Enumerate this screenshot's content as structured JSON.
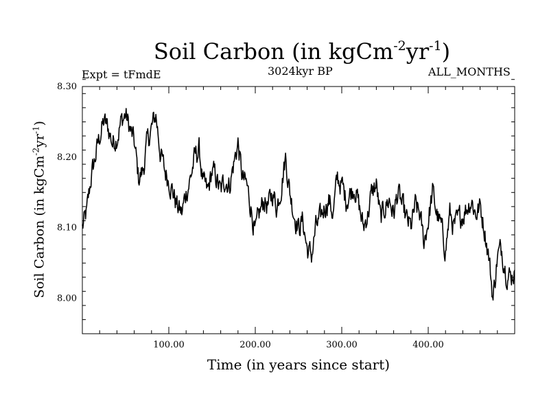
{
  "title": {
    "main": "Soil Carbon (in kgCm",
    "sup1": "-2",
    "mid": "yr",
    "sup2": "-1",
    "end": ")"
  },
  "left_note": "Expt = tFmdE",
  "center_note": "3024kyr BP",
  "right_note": "ALL_MONTHS",
  "chart_data": {
    "type": "line",
    "title": "Soil Carbon (in kgCm-2yr-1)",
    "xlabel": "Time (in years since start)",
    "ylabel": "Soil Carbon (in kgCm-2yr-1)",
    "xlim": [
      0,
      500
    ],
    "ylim": [
      7.95,
      8.3
    ],
    "x_ticks": [
      100,
      200,
      300,
      400
    ],
    "x_tick_labels": [
      "100.00",
      "200.00",
      "300.00",
      "400.00"
    ],
    "y_ticks": [
      8.0,
      8.1,
      8.2,
      8.3
    ],
    "y_tick_labels": [
      "8.00",
      "8.10",
      "8.20",
      "8.30"
    ],
    "grid": false,
    "series": [
      {
        "name": "Soil Carbon",
        "x": [
          0,
          5,
          10,
          15,
          20,
          25,
          30,
          35,
          40,
          45,
          50,
          55,
          60,
          65,
          70,
          75,
          80,
          85,
          90,
          95,
          100,
          105,
          110,
          115,
          120,
          125,
          130,
          135,
          140,
          145,
          150,
          155,
          160,
          165,
          170,
          175,
          180,
          185,
          190,
          195,
          200,
          205,
          210,
          215,
          220,
          225,
          230,
          235,
          240,
          245,
          250,
          255,
          260,
          265,
          270,
          275,
          280,
          285,
          290,
          295,
          300,
          305,
          310,
          315,
          320,
          325,
          330,
          335,
          340,
          345,
          350,
          355,
          360,
          365,
          370,
          375,
          380,
          385,
          390,
          395,
          400,
          405,
          410,
          415,
          420,
          425,
          430,
          435,
          440,
          445,
          450,
          455,
          460,
          465,
          470,
          475,
          480,
          485,
          490,
          495,
          500
        ],
        "values": [
          8.1,
          8.12,
          8.17,
          8.2,
          8.23,
          8.25,
          8.24,
          8.22,
          8.23,
          8.25,
          8.26,
          8.24,
          8.22,
          8.17,
          8.18,
          8.22,
          8.24,
          8.26,
          8.21,
          8.18,
          8.17,
          8.15,
          8.13,
          8.12,
          8.15,
          8.17,
          8.2,
          8.21,
          8.16,
          8.15,
          8.18,
          8.17,
          8.15,
          8.17,
          8.16,
          8.19,
          8.22,
          8.17,
          8.16,
          8.13,
          8.09,
          8.12,
          8.14,
          8.13,
          8.15,
          8.13,
          8.16,
          8.2,
          8.15,
          8.12,
          8.1,
          8.11,
          8.07,
          8.06,
          8.1,
          8.11,
          8.13,
          8.14,
          8.12,
          8.17,
          8.16,
          8.14,
          8.15,
          8.16,
          8.13,
          8.1,
          8.12,
          8.15,
          8.16,
          8.11,
          8.13,
          8.14,
          8.12,
          8.15,
          8.13,
          8.11,
          8.1,
          8.13,
          8.12,
          8.08,
          8.11,
          8.15,
          8.12,
          8.1,
          8.07,
          8.12,
          8.1,
          8.11,
          8.12,
          8.13,
          8.14,
          8.12,
          8.13,
          8.1,
          8.06,
          8.0,
          8.06,
          8.07,
          8.04,
          8.03,
          8.04
        ]
      }
    ]
  }
}
